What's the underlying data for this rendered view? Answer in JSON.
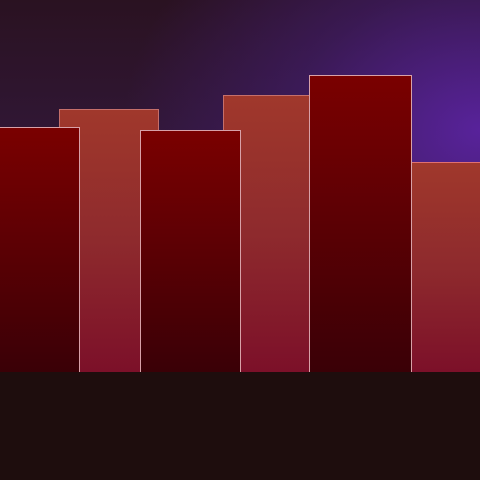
{
  "scene": {
    "palette": {
      "sky_top": "#2a1221",
      "sky_glow": "#5a23a0",
      "ground": "#1e0d0d",
      "building_dark": "#7a0000",
      "building_light": "#a0382c",
      "outline_light": "#d8a1a8"
    },
    "buildings": [
      {
        "name": "building-1",
        "tone": "dark"
      },
      {
        "name": "building-2",
        "tone": "light"
      },
      {
        "name": "building-3",
        "tone": "dark"
      },
      {
        "name": "building-4",
        "tone": "light"
      },
      {
        "name": "building-5",
        "tone": "dark"
      },
      {
        "name": "building-6",
        "tone": "light"
      }
    ]
  }
}
